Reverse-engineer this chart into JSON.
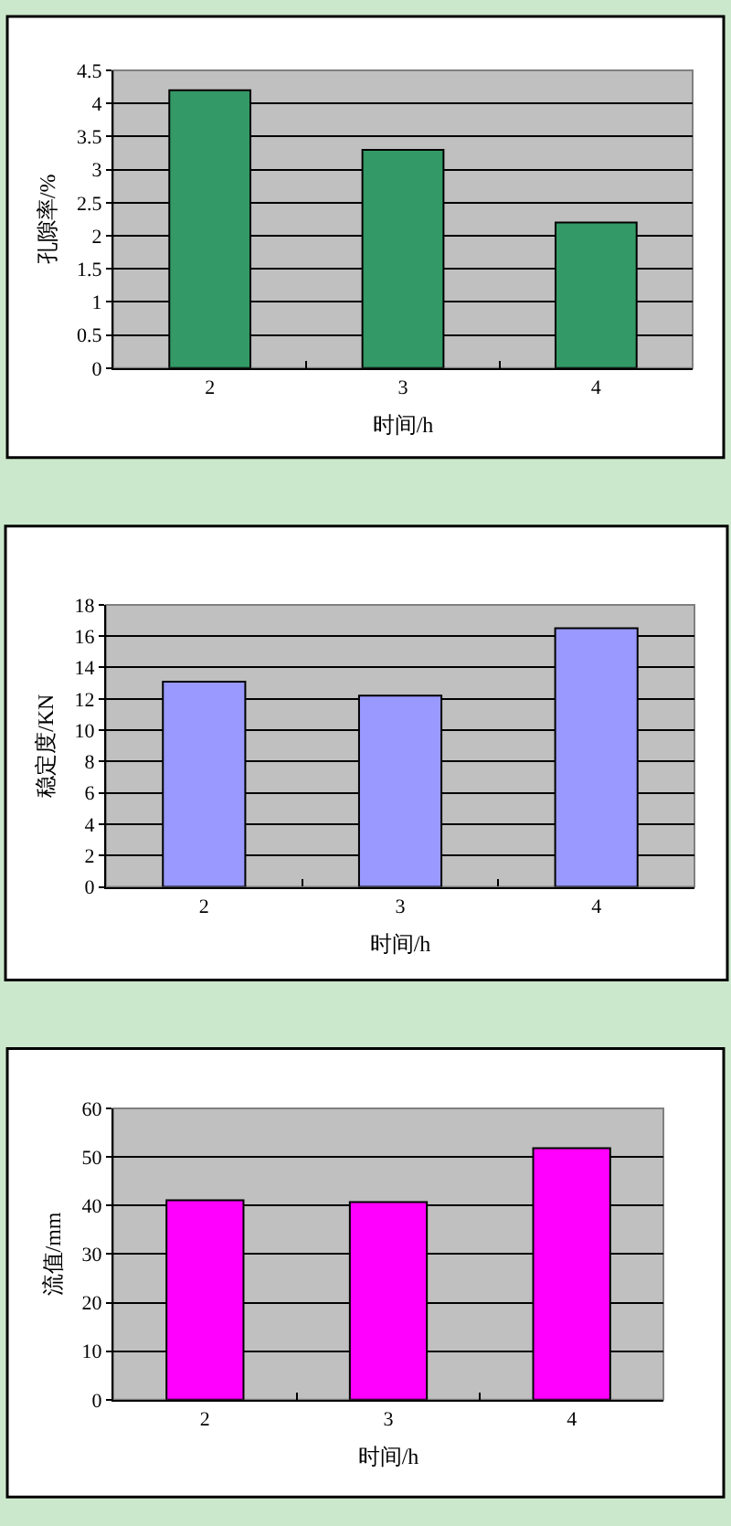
{
  "chart_data": [
    {
      "type": "bar",
      "categories": [
        "2",
        "3",
        "4"
      ],
      "values": [
        4.2,
        3.3,
        2.2
      ],
      "color": "#339966",
      "xlabel": "时间/h",
      "ylabel": "孔隙率/%",
      "ylim": [
        0,
        4.5
      ],
      "yticks": [
        0,
        0.5,
        1,
        1.5,
        2,
        2.5,
        3,
        3.5,
        4,
        4.5
      ],
      "grid": "y"
    },
    {
      "type": "bar",
      "categories": [
        "2",
        "3",
        "4"
      ],
      "values": [
        13.1,
        12.2,
        16.5
      ],
      "color": "#9999ff",
      "xlabel": "时间/h",
      "ylabel": "稳定度/KN",
      "ylim": [
        0,
        18
      ],
      "yticks": [
        0,
        2,
        4,
        6,
        8,
        10,
        12,
        14,
        16,
        18
      ],
      "grid": "y"
    },
    {
      "type": "bar",
      "categories": [
        "2",
        "3",
        "4"
      ],
      "values": [
        41.1,
        40.7,
        51.8
      ],
      "color": "#ff00ff",
      "xlabel": "时间/h",
      "ylabel": "流值/mm",
      "ylim": [
        0,
        60
      ],
      "yticks": [
        0,
        10,
        20,
        30,
        40,
        50,
        60
      ],
      "grid": "y"
    }
  ]
}
